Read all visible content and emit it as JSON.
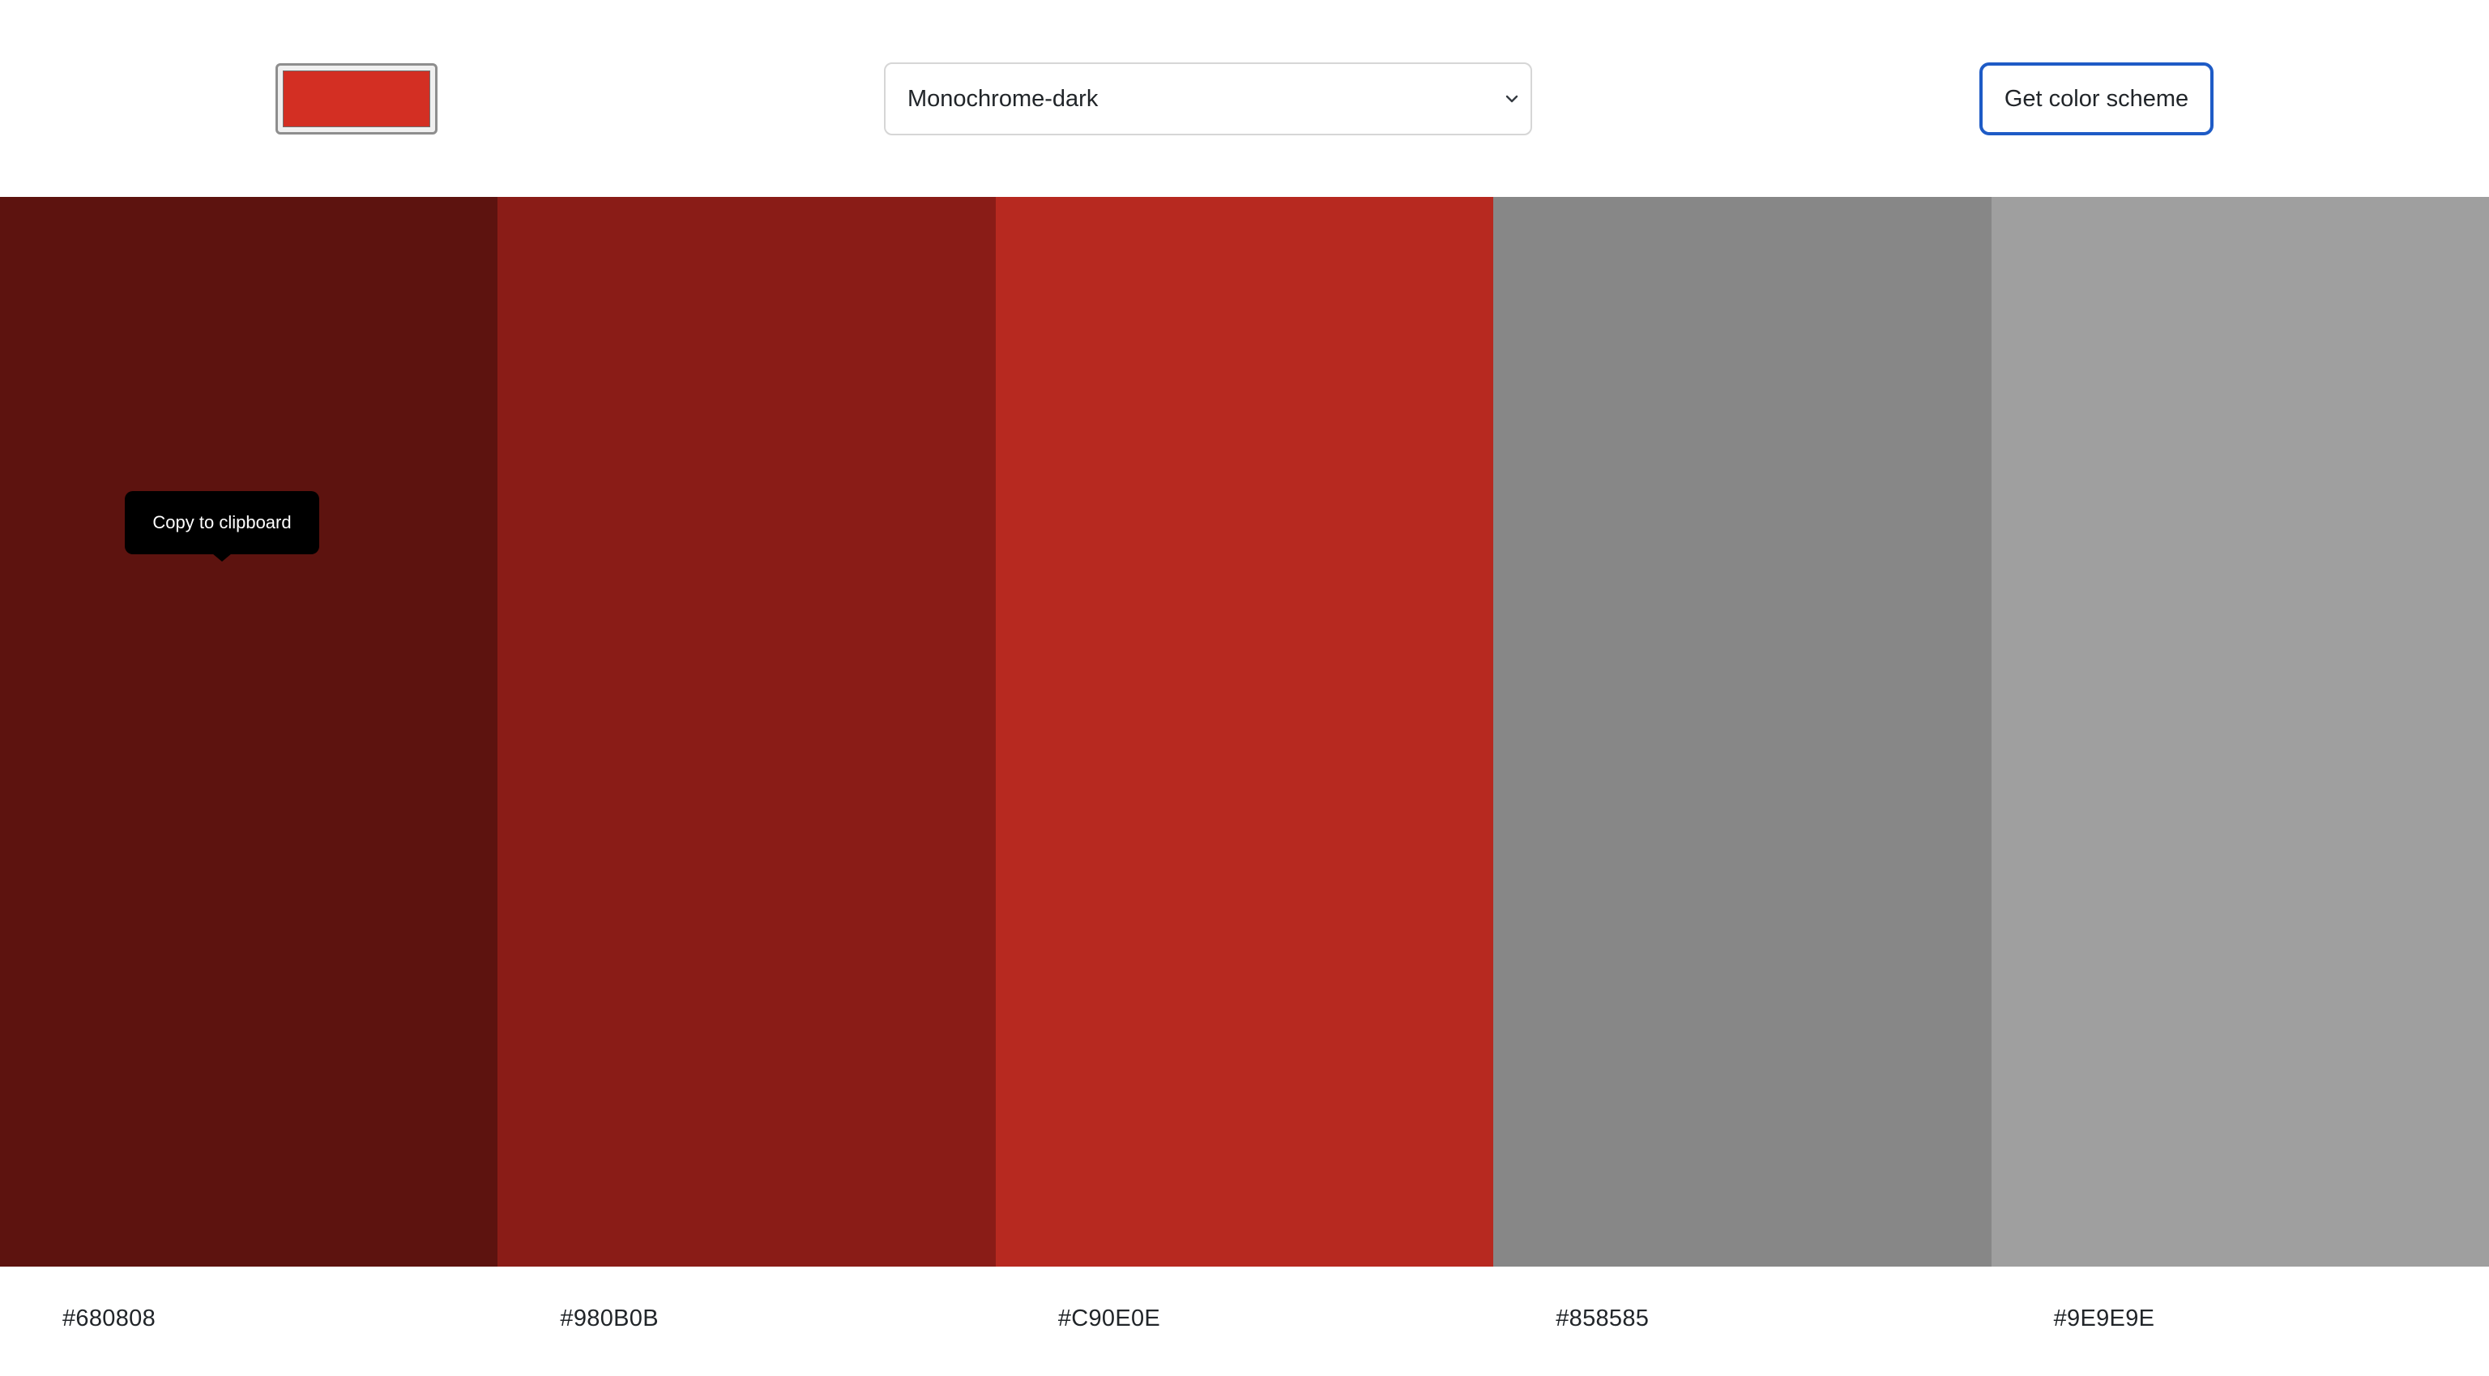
{
  "header": {
    "seed_color": "#D32F23",
    "mode_select": {
      "selected": "Monochrome-dark",
      "chevron_icon": "chevron-down-icon"
    },
    "submit_label": "Get color scheme"
  },
  "palette": {
    "colors": [
      {
        "hex": "#680808",
        "label": "#680808",
        "swatch": "#5D130F"
      },
      {
        "hex": "#980B0B",
        "label": "#980B0B",
        "swatch": "#8A1C17"
      },
      {
        "hex": "#C90E0E",
        "label": "#C90E0E",
        "swatch": "#B72920"
      },
      {
        "hex": "#858585",
        "label": "#858585",
        "swatch": "#878787"
      },
      {
        "hex": "#9E9E9E",
        "label": "#9E9E9E",
        "swatch": "#9F9F9F"
      }
    ]
  },
  "tooltip": {
    "text": "Copy to clipboard"
  }
}
